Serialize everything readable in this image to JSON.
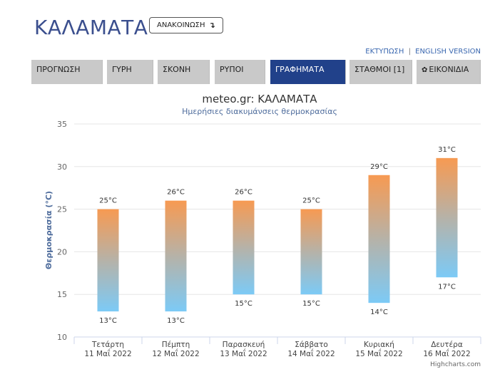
{
  "header": {
    "city": "ΚΑΛΑΜΑΤΑ",
    "announce_label": "ΑΝΑΚΟΙΝΩΣΗ",
    "announce_arrow": "↴",
    "print_link": "ΕΚΤΥΠΩΣΗ",
    "link_separator": "|",
    "english_link": "ENGLISH VERSION"
  },
  "tabs": [
    {
      "label": "ΠΡΟΓΝΩΣΗ",
      "active": false
    },
    {
      "label": "ΓΥΡΗ",
      "active": false
    },
    {
      "label": "ΣΚΟΝΗ",
      "active": false
    },
    {
      "label": "ΡΥΠΟΙ",
      "active": false
    },
    {
      "label": "ΓΡΑΦΗΜΑΤΑ",
      "active": true
    },
    {
      "label": "ΣΤΑΘΜΟΙ [1]",
      "active": false
    },
    {
      "label": "ΕΙΚΟΝΙΔΙΑ",
      "active": false,
      "icon": "gear-icon"
    }
  ],
  "credit": "Highcharts.com",
  "colors": {
    "accent": "#21418a",
    "title": "#3b4f8e",
    "bar_top": "#f79a52",
    "bar_mid": "#b6b2a8",
    "bar_bottom": "#7ccaf6"
  },
  "chart_data": {
    "type": "columnrange",
    "title": "meteo.gr: ΚΑΛΑΜΑΤΑ",
    "subtitle": "Ημερήσιες διακυμάνσεις θερμοκρασίας",
    "ylabel": "Θερμοκρασία (°C)",
    "ylim": [
      10,
      35
    ],
    "yticks": [
      10,
      15,
      20,
      25,
      30,
      35
    ],
    "grid": true,
    "categories": [
      {
        "day": "Τετάρτη",
        "date": "11 Μαΐ 2022"
      },
      {
        "day": "Πέμπτη",
        "date": "12 Μαΐ 2022"
      },
      {
        "day": "Παρασκευή",
        "date": "13 Μαΐ 2022"
      },
      {
        "day": "Σάββατο",
        "date": "14 Μαΐ 2022"
      },
      {
        "day": "Κυριακή",
        "date": "15 Μαΐ 2022"
      },
      {
        "day": "Δευτέρα",
        "date": "16 Μαΐ 2022"
      }
    ],
    "low": [
      13,
      13,
      15,
      15,
      14,
      17
    ],
    "high": [
      25,
      26,
      26,
      25,
      29,
      31
    ],
    "unit": "°C"
  }
}
